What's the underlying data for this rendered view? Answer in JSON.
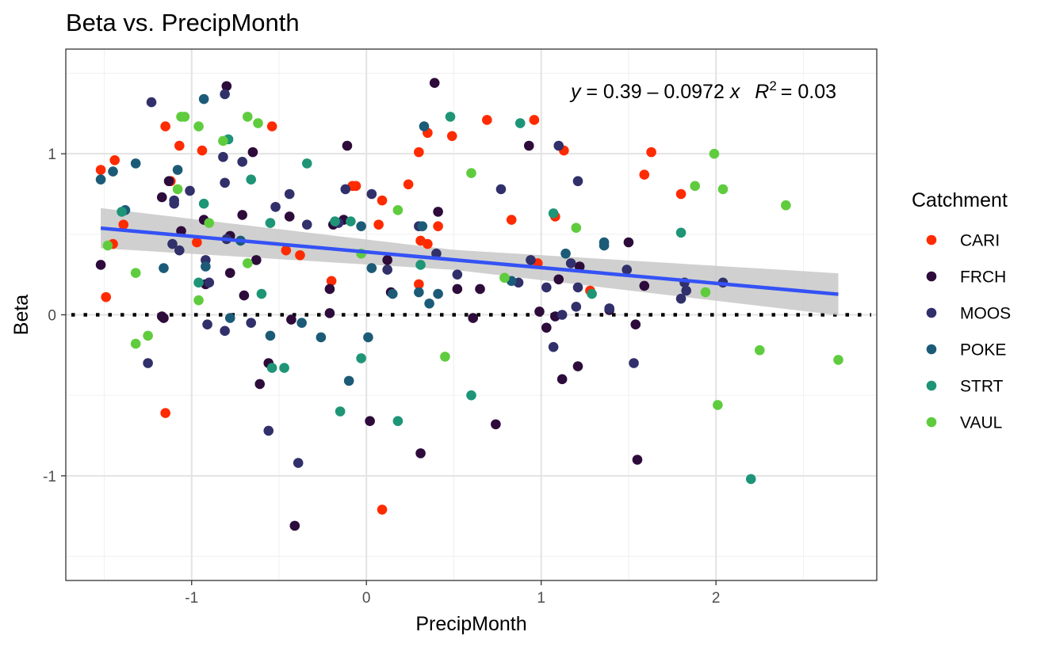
{
  "chart_data": {
    "type": "scatter",
    "title": "Beta vs. PrecipMonth",
    "xlabel": "PrecipMonth",
    "ylabel": "Beta",
    "xlim": [
      -1.72,
      2.92
    ],
    "ylim": [
      -1.65,
      1.65
    ],
    "x_ticks": [
      -1,
      0,
      1,
      2
    ],
    "x_tick_labels": [
      "-1",
      "0",
      "1",
      "2"
    ],
    "y_ticks": [
      -1,
      0,
      1
    ],
    "y_tick_labels": [
      "-1",
      "0",
      "1"
    ],
    "grid": true,
    "legend": {
      "title": "Catchment",
      "position": "right"
    },
    "reference_line": {
      "y": 0,
      "style": "dotted"
    },
    "fit": {
      "intercept": 0.39,
      "slope": -0.0972,
      "x_range": [
        -1.52,
        2.7
      ],
      "se_band": true
    },
    "annotation": {
      "y": "y",
      "eq": "= 0.39 – 0.0972",
      "x": "x",
      "r": "R",
      "sup": "2",
      "r2": "= 0.03"
    },
    "series": [
      {
        "name": "CARI",
        "color": "#ff2b00",
        "points": [
          [
            -1.52,
            0.9
          ],
          [
            -1.49,
            0.11
          ],
          [
            -1.45,
            0.44
          ],
          [
            -1.44,
            0.96
          ],
          [
            -1.39,
            0.56
          ],
          [
            -1.15,
            1.17
          ],
          [
            -1.15,
            -0.61
          ],
          [
            -1.12,
            0.83
          ],
          [
            -1.07,
            1.05
          ],
          [
            -0.97,
            0.45
          ],
          [
            -0.94,
            1.02
          ],
          [
            -0.54,
            1.17
          ],
          [
            -0.46,
            0.4
          ],
          [
            -0.38,
            0.37
          ],
          [
            -0.2,
            0.21
          ],
          [
            -0.08,
            0.8
          ],
          [
            -0.06,
            0.8
          ],
          [
            0.07,
            0.56
          ],
          [
            0.09,
            0.71
          ],
          [
            0.09,
            -1.21
          ],
          [
            0.24,
            0.81
          ],
          [
            0.3,
            1.01
          ],
          [
            0.3,
            0.19
          ],
          [
            0.31,
            0.46
          ],
          [
            0.35,
            0.44
          ],
          [
            0.35,
            1.13
          ],
          [
            0.41,
            0.55
          ],
          [
            0.49,
            1.11
          ],
          [
            0.69,
            1.21
          ],
          [
            0.83,
            0.59
          ],
          [
            0.96,
            1.21
          ],
          [
            0.98,
            0.32
          ],
          [
            1.08,
            0.61
          ],
          [
            1.13,
            1.02
          ],
          [
            1.28,
            0.15
          ],
          [
            1.59,
            0.87
          ],
          [
            1.63,
            1.01
          ],
          [
            1.8,
            0.75
          ]
        ]
      },
      {
        "name": "FRCH",
        "color": "#2d0b3b",
        "points": [
          [
            -1.52,
            0.31
          ],
          [
            -1.17,
            0.73
          ],
          [
            -1.17,
            -0.01
          ],
          [
            -1.16,
            -0.02
          ],
          [
            -1.13,
            0.83
          ],
          [
            -1.06,
            0.52
          ],
          [
            -0.93,
            0.59
          ],
          [
            -0.92,
            0.19
          ],
          [
            -0.8,
            1.42
          ],
          [
            -0.78,
            0.49
          ],
          [
            -0.78,
            0.26
          ],
          [
            -0.71,
            0.62
          ],
          [
            -0.7,
            0.12
          ],
          [
            -0.65,
            1.01
          ],
          [
            -0.63,
            0.34
          ],
          [
            -0.61,
            -0.43
          ],
          [
            -0.56,
            -0.3
          ],
          [
            -0.44,
            0.61
          ],
          [
            -0.43,
            -0.03
          ],
          [
            -0.41,
            -1.31
          ],
          [
            -0.21,
            0.01
          ],
          [
            -0.21,
            0.16
          ],
          [
            -0.19,
            0.56
          ],
          [
            -0.13,
            0.59
          ],
          [
            -0.11,
            1.05
          ],
          [
            0.12,
            0.34
          ],
          [
            0.14,
            0.14
          ],
          [
            0.02,
            -0.66
          ],
          [
            0.31,
            -0.86
          ],
          [
            0.39,
            1.44
          ],
          [
            0.41,
            0.64
          ],
          [
            0.52,
            0.16
          ],
          [
            0.61,
            -0.02
          ],
          [
            0.65,
            0.16
          ],
          [
            0.74,
            -0.68
          ],
          [
            0.93,
            1.05
          ],
          [
            0.99,
            0.02
          ],
          [
            1.03,
            -0.08
          ],
          [
            1.08,
            -0.01
          ],
          [
            1.1,
            0.22
          ],
          [
            1.12,
            -0.4
          ],
          [
            1.21,
            -0.32
          ],
          [
            1.22,
            0.3
          ],
          [
            1.39,
            0.03
          ],
          [
            1.5,
            0.45
          ],
          [
            1.54,
            -0.06
          ],
          [
            1.55,
            -0.9
          ],
          [
            1.59,
            0.18
          ]
        ]
      },
      {
        "name": "MOOS",
        "color": "#31306b",
        "points": [
          [
            -1.25,
            -0.3
          ],
          [
            -1.23,
            1.32
          ],
          [
            -1.11,
            0.44
          ],
          [
            -1.1,
            0.71
          ],
          [
            -1.1,
            0.69
          ],
          [
            -1.07,
            0.4
          ],
          [
            -1.01,
            0.77
          ],
          [
            -0.92,
            0.34
          ],
          [
            -0.91,
            -0.06
          ],
          [
            -0.9,
            0.2
          ],
          [
            -0.82,
            0.98
          ],
          [
            -0.81,
            0.82
          ],
          [
            -0.81,
            1.37
          ],
          [
            -0.81,
            -0.1
          ],
          [
            -0.8,
            0.47
          ],
          [
            -0.71,
            0.95
          ],
          [
            -0.66,
            -0.05
          ],
          [
            -0.56,
            -0.72
          ],
          [
            -0.52,
            0.67
          ],
          [
            -0.44,
            0.75
          ],
          [
            -0.39,
            -0.92
          ],
          [
            -0.34,
            0.56
          ],
          [
            -0.12,
            0.78
          ],
          [
            -0.16,
            0.57
          ],
          [
            0.03,
            0.75
          ],
          [
            0.12,
            0.28
          ],
          [
            0.3,
            0.55
          ],
          [
            0.4,
            0.38
          ],
          [
            0.52,
            0.25
          ],
          [
            0.77,
            0.78
          ],
          [
            0.94,
            0.34
          ],
          [
            0.87,
            0.2
          ],
          [
            1.03,
            0.17
          ],
          [
            1.07,
            -0.2
          ],
          [
            1.1,
            1.05
          ],
          [
            1.12,
            0.0
          ],
          [
            1.17,
            0.32
          ],
          [
            1.21,
            0.83
          ],
          [
            1.2,
            0.05
          ],
          [
            1.21,
            0.17
          ],
          [
            1.39,
            0.04
          ],
          [
            1.49,
            0.28
          ],
          [
            1.53,
            -0.3
          ],
          [
            1.8,
            0.1
          ],
          [
            1.82,
            0.2
          ],
          [
            1.83,
            0.15
          ],
          [
            2.04,
            0.2
          ]
        ]
      },
      {
        "name": "POKE",
        "color": "#1c5b77",
        "points": [
          [
            -1.52,
            0.84
          ],
          [
            -1.45,
            0.89
          ],
          [
            -1.38,
            0.65
          ],
          [
            -1.32,
            0.94
          ],
          [
            -1.16,
            0.29
          ],
          [
            -1.08,
            0.9
          ],
          [
            -0.93,
            1.34
          ],
          [
            -0.92,
            0.3
          ],
          [
            -0.78,
            -0.02
          ],
          [
            -0.72,
            0.46
          ],
          [
            -0.55,
            -0.13
          ],
          [
            -0.37,
            -0.05
          ],
          [
            -0.26,
            -0.14
          ],
          [
            -0.1,
            -0.41
          ],
          [
            -0.03,
            0.55
          ],
          [
            0.01,
            -0.14
          ],
          [
            0.03,
            0.29
          ],
          [
            0.15,
            0.13
          ],
          [
            0.3,
            0.14
          ],
          [
            0.32,
            0.55
          ],
          [
            0.33,
            1.17
          ],
          [
            0.36,
            0.07
          ],
          [
            0.41,
            0.13
          ],
          [
            0.83,
            0.21
          ],
          [
            1.14,
            0.38
          ],
          [
            1.36,
            0.45
          ],
          [
            1.36,
            0.43
          ]
        ]
      },
      {
        "name": "STRT",
        "color": "#1e9577",
        "points": [
          [
            -1.4,
            0.64
          ],
          [
            -0.96,
            0.2
          ],
          [
            -0.93,
            0.69
          ],
          [
            -0.79,
            1.09
          ],
          [
            -0.66,
            0.84
          ],
          [
            -0.6,
            0.13
          ],
          [
            -0.55,
            0.57
          ],
          [
            -0.54,
            -0.33
          ],
          [
            -0.47,
            -0.33
          ],
          [
            -0.34,
            0.94
          ],
          [
            -0.18,
            0.58
          ],
          [
            -0.15,
            -0.6
          ],
          [
            -0.09,
            0.58
          ],
          [
            -0.03,
            -0.27
          ],
          [
            0.18,
            -0.66
          ],
          [
            0.31,
            0.31
          ],
          [
            0.48,
            1.23
          ],
          [
            0.6,
            -0.5
          ],
          [
            0.88,
            1.19
          ],
          [
            1.07,
            0.63
          ],
          [
            1.29,
            0.13
          ],
          [
            1.8,
            0.51
          ],
          [
            2.2,
            -1.02
          ]
        ]
      },
      {
        "name": "VAUL",
        "color": "#5fcc3e",
        "points": [
          [
            -1.48,
            0.43
          ],
          [
            -1.32,
            0.26
          ],
          [
            -1.32,
            -0.18
          ],
          [
            -1.25,
            -0.13
          ],
          [
            -1.08,
            0.78
          ],
          [
            -1.06,
            1.23
          ],
          [
            -1.04,
            1.23
          ],
          [
            -0.96,
            0.09
          ],
          [
            -0.96,
            1.17
          ],
          [
            -0.9,
            0.57
          ],
          [
            -0.82,
            1.08
          ],
          [
            -0.68,
            1.23
          ],
          [
            -0.62,
            1.19
          ],
          [
            -0.68,
            0.32
          ],
          [
            -0.03,
            0.38
          ],
          [
            0.18,
            0.65
          ],
          [
            0.45,
            -0.26
          ],
          [
            0.6,
            0.88
          ],
          [
            0.79,
            0.23
          ],
          [
            1.2,
            0.54
          ],
          [
            1.88,
            0.8
          ],
          [
            1.94,
            0.14
          ],
          [
            1.99,
            1.0
          ],
          [
            2.01,
            -0.56
          ],
          [
            2.04,
            0.78
          ],
          [
            2.25,
            -0.22
          ],
          [
            2.4,
            0.68
          ],
          [
            2.7,
            -0.28
          ]
        ]
      }
    ]
  }
}
